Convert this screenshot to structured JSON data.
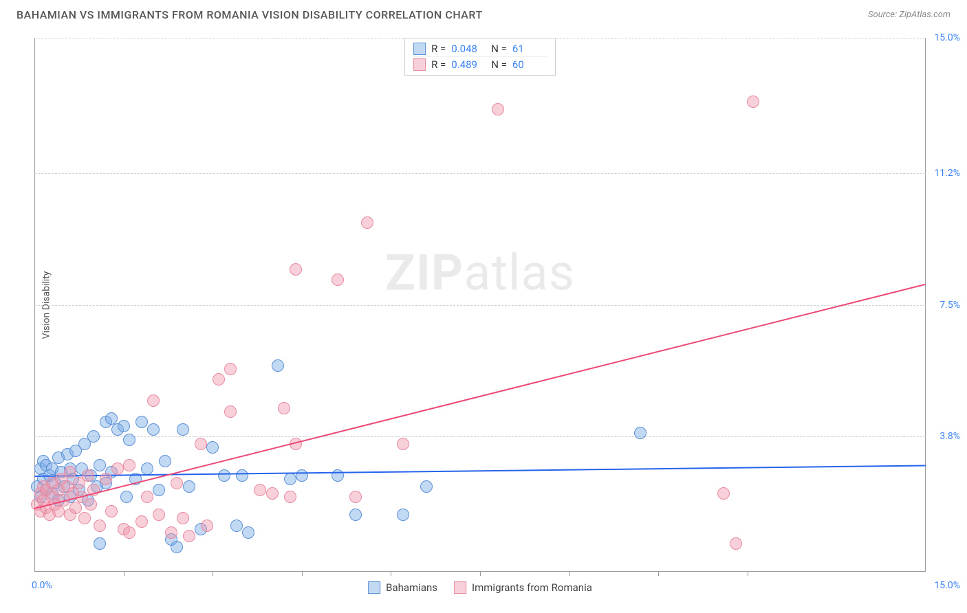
{
  "title": "BAHAMIAN VS IMMIGRANTS FROM ROMANIA VISION DISABILITY CORRELATION CHART",
  "source": "Source: ZipAtlas.com",
  "ylabel": "Vision Disability",
  "watermark_a": "ZIP",
  "watermark_b": "atlas",
  "chart": {
    "type": "scatter",
    "xlim": [
      0,
      15
    ],
    "ylim": [
      0,
      15
    ],
    "xlabel_min": "0.0%",
    "xlabel_max": "15.0%",
    "ytick_labels": [
      "3.8%",
      "7.5%",
      "11.2%",
      "15.0%"
    ],
    "ytick_values": [
      3.8,
      7.5,
      11.2,
      15.0
    ],
    "xtick_values": [
      1.5,
      3,
      4.5,
      6,
      7.5,
      9,
      10.5,
      12
    ],
    "grid_color": "#d0d0d0",
    "axis_color": "#999999",
    "tick_label_color": "#3b82f6",
    "background_color": "#ffffff",
    "point_radius": 9,
    "series": [
      {
        "name": "Bahamians",
        "fill": "rgba(120,170,230,0.45)",
        "stroke": "#5b8fd6",
        "trend_color": "#2563eb",
        "trend": {
          "x1": 0,
          "y1": 2.7,
          "x2": 15,
          "y2": 3.0
        },
        "stats": {
          "R": "0.048",
          "N": "61"
        },
        "points": [
          [
            0.05,
            2.4
          ],
          [
            0.1,
            2.9
          ],
          [
            0.1,
            2.1
          ],
          [
            0.15,
            3.1
          ],
          [
            0.15,
            2.6
          ],
          [
            0.2,
            2.3
          ],
          [
            0.2,
            3.0
          ],
          [
            0.25,
            2.7
          ],
          [
            0.3,
            2.9
          ],
          [
            0.3,
            2.2
          ],
          [
            0.35,
            2.5
          ],
          [
            0.4,
            3.2
          ],
          [
            0.4,
            2.0
          ],
          [
            0.45,
            2.8
          ],
          [
            0.5,
            2.4
          ],
          [
            0.55,
            3.3
          ],
          [
            0.6,
            2.1
          ],
          [
            0.6,
            2.9
          ],
          [
            0.65,
            2.6
          ],
          [
            0.7,
            3.4
          ],
          [
            0.75,
            2.3
          ],
          [
            0.8,
            2.9
          ],
          [
            0.85,
            3.6
          ],
          [
            0.9,
            2.0
          ],
          [
            0.95,
            2.7
          ],
          [
            1.0,
            3.8
          ],
          [
            1.05,
            2.4
          ],
          [
            1.1,
            3.0
          ],
          [
            1.2,
            4.2
          ],
          [
            1.2,
            2.5
          ],
          [
            1.3,
            2.8
          ],
          [
            1.4,
            4.0
          ],
          [
            1.5,
            4.1
          ],
          [
            1.55,
            2.1
          ],
          [
            1.6,
            3.7
          ],
          [
            1.7,
            2.6
          ],
          [
            1.8,
            4.2
          ],
          [
            1.9,
            2.9
          ],
          [
            2.0,
            4.0
          ],
          [
            2.1,
            2.3
          ],
          [
            2.2,
            3.1
          ],
          [
            2.3,
            0.9
          ],
          [
            2.4,
            0.7
          ],
          [
            2.5,
            4.0
          ],
          [
            2.6,
            2.4
          ],
          [
            2.8,
            1.2
          ],
          [
            3.0,
            3.5
          ],
          [
            3.2,
            2.7
          ],
          [
            3.4,
            1.3
          ],
          [
            3.5,
            2.7
          ],
          [
            3.6,
            1.1
          ],
          [
            4.1,
            5.8
          ],
          [
            4.3,
            2.6
          ],
          [
            4.5,
            2.7
          ],
          [
            5.1,
            2.7
          ],
          [
            5.4,
            1.6
          ],
          [
            6.2,
            1.6
          ],
          [
            6.6,
            2.4
          ],
          [
            1.1,
            0.8
          ],
          [
            1.3,
            4.3
          ],
          [
            10.2,
            3.9
          ]
        ]
      },
      {
        "name": "Immigrants from Romania",
        "fill": "rgba(240,150,170,0.45)",
        "stroke": "#e88aa0",
        "trend_color": "#ec4876",
        "trend": {
          "x1": 0,
          "y1": 1.8,
          "x2": 15,
          "y2": 8.1
        },
        "stats": {
          "R": "0.489",
          "N": "60"
        },
        "points": [
          [
            0.05,
            1.9
          ],
          [
            0.1,
            2.2
          ],
          [
            0.1,
            1.7
          ],
          [
            0.15,
            2.0
          ],
          [
            0.15,
            2.4
          ],
          [
            0.2,
            1.8
          ],
          [
            0.2,
            2.3
          ],
          [
            0.25,
            1.6
          ],
          [
            0.3,
            2.1
          ],
          [
            0.3,
            2.5
          ],
          [
            0.35,
            1.9
          ],
          [
            0.4,
            2.3
          ],
          [
            0.4,
            1.7
          ],
          [
            0.45,
            2.6
          ],
          [
            0.5,
            2.0
          ],
          [
            0.55,
            2.4
          ],
          [
            0.6,
            1.6
          ],
          [
            0.6,
            2.8
          ],
          [
            0.65,
            2.2
          ],
          [
            0.7,
            1.8
          ],
          [
            0.75,
            2.5
          ],
          [
            0.8,
            2.1
          ],
          [
            0.85,
            1.5
          ],
          [
            0.9,
            2.7
          ],
          [
            0.95,
            1.9
          ],
          [
            1.0,
            2.3
          ],
          [
            1.1,
            1.3
          ],
          [
            1.2,
            2.6
          ],
          [
            1.3,
            1.7
          ],
          [
            1.4,
            2.9
          ],
          [
            1.5,
            1.2
          ],
          [
            1.6,
            3.0
          ],
          [
            1.8,
            1.4
          ],
          [
            1.9,
            2.1
          ],
          [
            2.0,
            4.8
          ],
          [
            2.1,
            1.6
          ],
          [
            2.3,
            1.1
          ],
          [
            2.4,
            2.5
          ],
          [
            2.6,
            1.0
          ],
          [
            2.8,
            3.6
          ],
          [
            2.9,
            1.3
          ],
          [
            3.1,
            5.4
          ],
          [
            3.3,
            5.7
          ],
          [
            3.3,
            4.5
          ],
          [
            3.8,
            2.3
          ],
          [
            4.0,
            2.2
          ],
          [
            4.2,
            4.6
          ],
          [
            4.3,
            2.1
          ],
          [
            4.4,
            8.5
          ],
          [
            4.4,
            3.6
          ],
          [
            5.1,
            8.2
          ],
          [
            5.4,
            2.1
          ],
          [
            5.6,
            9.8
          ],
          [
            6.2,
            3.6
          ],
          [
            11.6,
            2.2
          ],
          [
            11.8,
            0.8
          ],
          [
            12.1,
            13.2
          ],
          [
            7.8,
            13.0
          ],
          [
            1.6,
            1.1
          ],
          [
            2.5,
            1.5
          ]
        ]
      }
    ]
  },
  "legend": {
    "series1": "Bahamians",
    "series2": "Immigrants from Romania"
  }
}
